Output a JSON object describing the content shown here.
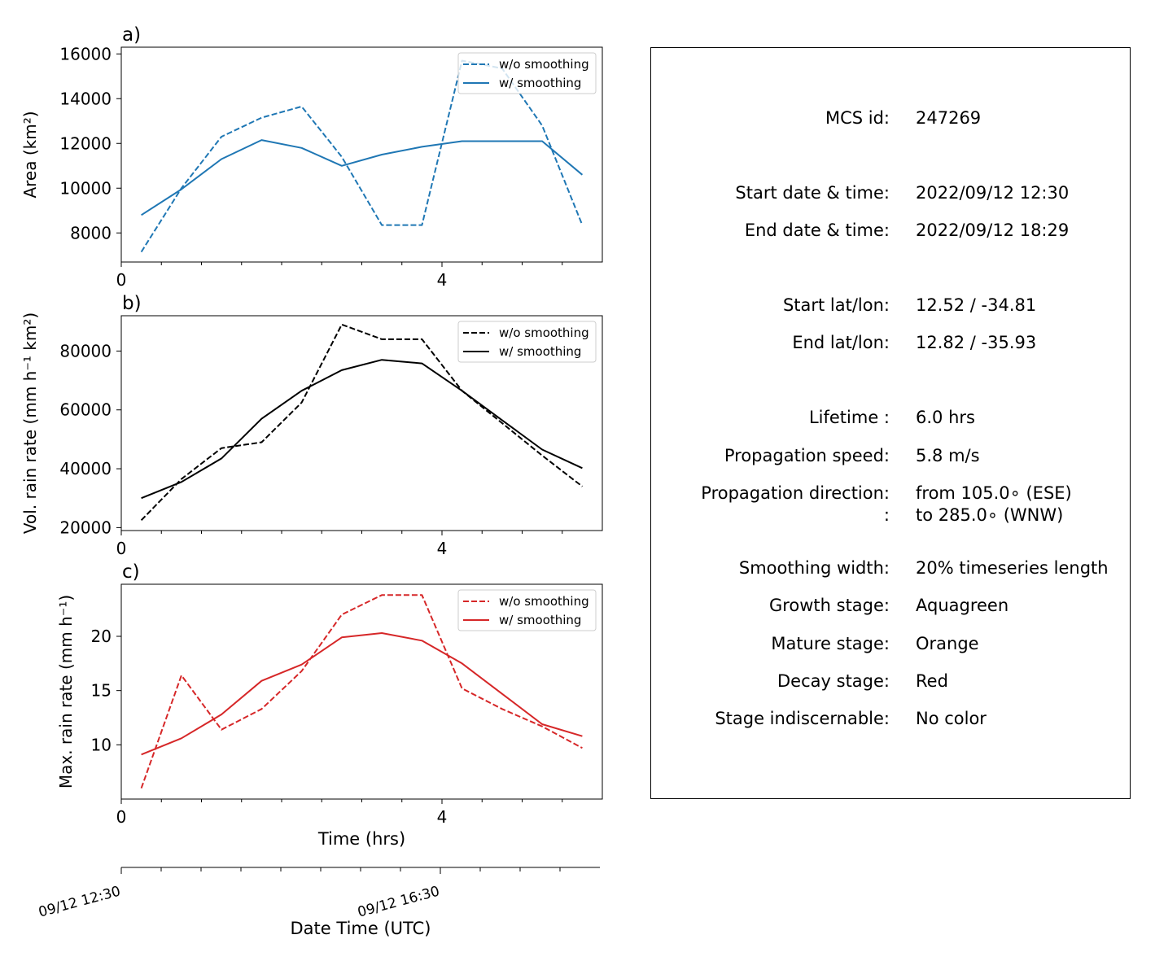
{
  "chart_data": [
    {
      "type": "line",
      "panel_label": "a)",
      "xlabel": "",
      "ylabel": "Area  (km²)",
      "xlim": [
        0,
        6
      ],
      "ylim": [
        6700,
        16300
      ],
      "xticks": [
        0,
        4
      ],
      "xtick_labels": [
        "0",
        "4"
      ],
      "yticks": [
        8000,
        10000,
        12000,
        14000,
        16000
      ],
      "ytick_labels": [
        "8000",
        "10000",
        "12000",
        "14000",
        "16000"
      ],
      "color": "#1f77b4",
      "legend": "top-right",
      "series": [
        {
          "name": "w/o smoothing",
          "style": "dashed",
          "x": [
            0.25,
            0.75,
            1.25,
            1.75,
            2.25,
            2.75,
            3.25,
            3.75,
            4.25,
            4.75,
            5.25,
            5.75
          ],
          "y": [
            7150,
            10000,
            12300,
            13150,
            13650,
            11400,
            8350,
            8350,
            15700,
            15350,
            12800,
            8350
          ]
        },
        {
          "name": "w/ smoothing",
          "style": "solid",
          "x": [
            0.25,
            0.75,
            1.25,
            1.75,
            2.25,
            2.75,
            3.25,
            3.75,
            4.25,
            4.75,
            5.25,
            5.75
          ],
          "y": [
            8800,
            9950,
            11300,
            12150,
            11800,
            11000,
            11500,
            11850,
            12100,
            12100,
            12100,
            10600
          ]
        }
      ]
    },
    {
      "type": "line",
      "panel_label": "b)",
      "xlabel": "",
      "ylabel": "Vol. rain rate (mm h⁻¹ km²)",
      "xlim": [
        0,
        6
      ],
      "ylim": [
        19000,
        92000
      ],
      "xticks": [
        0,
        4
      ],
      "xtick_labels": [
        "0",
        "4"
      ],
      "yticks": [
        20000,
        40000,
        60000,
        80000
      ],
      "ytick_labels": [
        "20000",
        "40000",
        "60000",
        "80000"
      ],
      "color": "#000000",
      "legend": "top-right",
      "series": [
        {
          "name": "w/o smoothing",
          "style": "dashed",
          "x": [
            0.25,
            0.75,
            1.25,
            1.75,
            2.25,
            2.75,
            3.25,
            3.75,
            4.25,
            4.75,
            5.25,
            5.75
          ],
          "y": [
            22500,
            36500,
            47000,
            49000,
            62500,
            89000,
            84000,
            84000,
            66500,
            55500,
            44500,
            34000
          ]
        },
        {
          "name": "w/ smoothing",
          "style": "solid",
          "x": [
            0.25,
            0.75,
            1.25,
            1.75,
            2.25,
            2.75,
            3.25,
            3.75,
            4.25,
            4.75,
            5.25,
            5.75
          ],
          "y": [
            30000,
            35500,
            43500,
            57000,
            66500,
            73500,
            77000,
            75800,
            66500,
            56500,
            46500,
            40200
          ]
        }
      ]
    },
    {
      "type": "line",
      "panel_label": "c)",
      "xlabel": "Time (hrs)",
      "ylabel": "Max. rain rate  (mm h⁻¹)",
      "xlim": [
        0,
        6
      ],
      "ylim": [
        5,
        24.8
      ],
      "xticks": [
        0,
        4
      ],
      "xtick_labels": [
        "0",
        "4"
      ],
      "yticks": [
        10,
        15,
        20
      ],
      "ytick_labels": [
        "10",
        "15",
        "20"
      ],
      "color": "#d62728",
      "legend": "top-right",
      "series": [
        {
          "name": "w/o smoothing",
          "style": "dashed",
          "x": [
            0.25,
            0.75,
            1.25,
            1.75,
            2.25,
            2.75,
            3.25,
            3.75,
            4.25,
            4.75,
            5.25,
            5.75
          ],
          "y": [
            6.0,
            16.4,
            11.4,
            13.3,
            16.8,
            22.0,
            23.8,
            23.8,
            15.2,
            13.3,
            11.7,
            9.7
          ]
        },
        {
          "name": "w/ smoothing",
          "style": "solid",
          "x": [
            0.25,
            0.75,
            1.25,
            1.75,
            2.25,
            2.75,
            3.25,
            3.75,
            4.25,
            4.75,
            5.25,
            5.75
          ],
          "y": [
            9.1,
            10.6,
            12.8,
            15.9,
            17.4,
            19.9,
            20.3,
            19.6,
            17.5,
            14.7,
            11.9,
            10.8
          ]
        }
      ]
    }
  ],
  "datetime_axis": {
    "xlabel": "Date Time (UTC)",
    "tick_labels": [
      {
        "hours": 0,
        "label": "09/12 12:30"
      },
      {
        "hours": 4,
        "label": "09/12 16:30"
      }
    ],
    "minor_ticks_hours": [
      0.5,
      1,
      1.5,
      2,
      2.5,
      3,
      3.5,
      4.5,
      5,
      5.5
    ]
  },
  "info": {
    "rows": [
      {
        "label": "MCS id:",
        "value": "247269"
      },
      {
        "label": "Start date & time:",
        "value": "2022/09/12 12:30"
      },
      {
        "label": "End date & time:",
        "value": "2022/09/12 18:29"
      },
      {
        "label": "Start lat/lon:",
        "value": "12.52 / -34.81"
      },
      {
        "label": "End lat/lon:",
        "value": "12.82 / -35.93"
      },
      {
        "label": "Lifetime :",
        "value": "6.0 hrs"
      },
      {
        "label": "Propagation speed:",
        "value": "5.8 m/s"
      },
      {
        "label": "Propagation direction:",
        "value": "from 105.0∘ (ESE)"
      },
      {
        "label": ":",
        "value": "to   285.0∘ (WNW)"
      },
      {
        "label": "Smoothing width:",
        "value": "20% timeseries length"
      },
      {
        "label": "Growth stage:",
        "value": "Aquagreen"
      },
      {
        "label": "Mature stage:",
        "value": "Orange"
      },
      {
        "label": "Decay stage:",
        "value": "Red"
      },
      {
        "label": "Stage indiscernable:",
        "value": "No color"
      }
    ]
  }
}
